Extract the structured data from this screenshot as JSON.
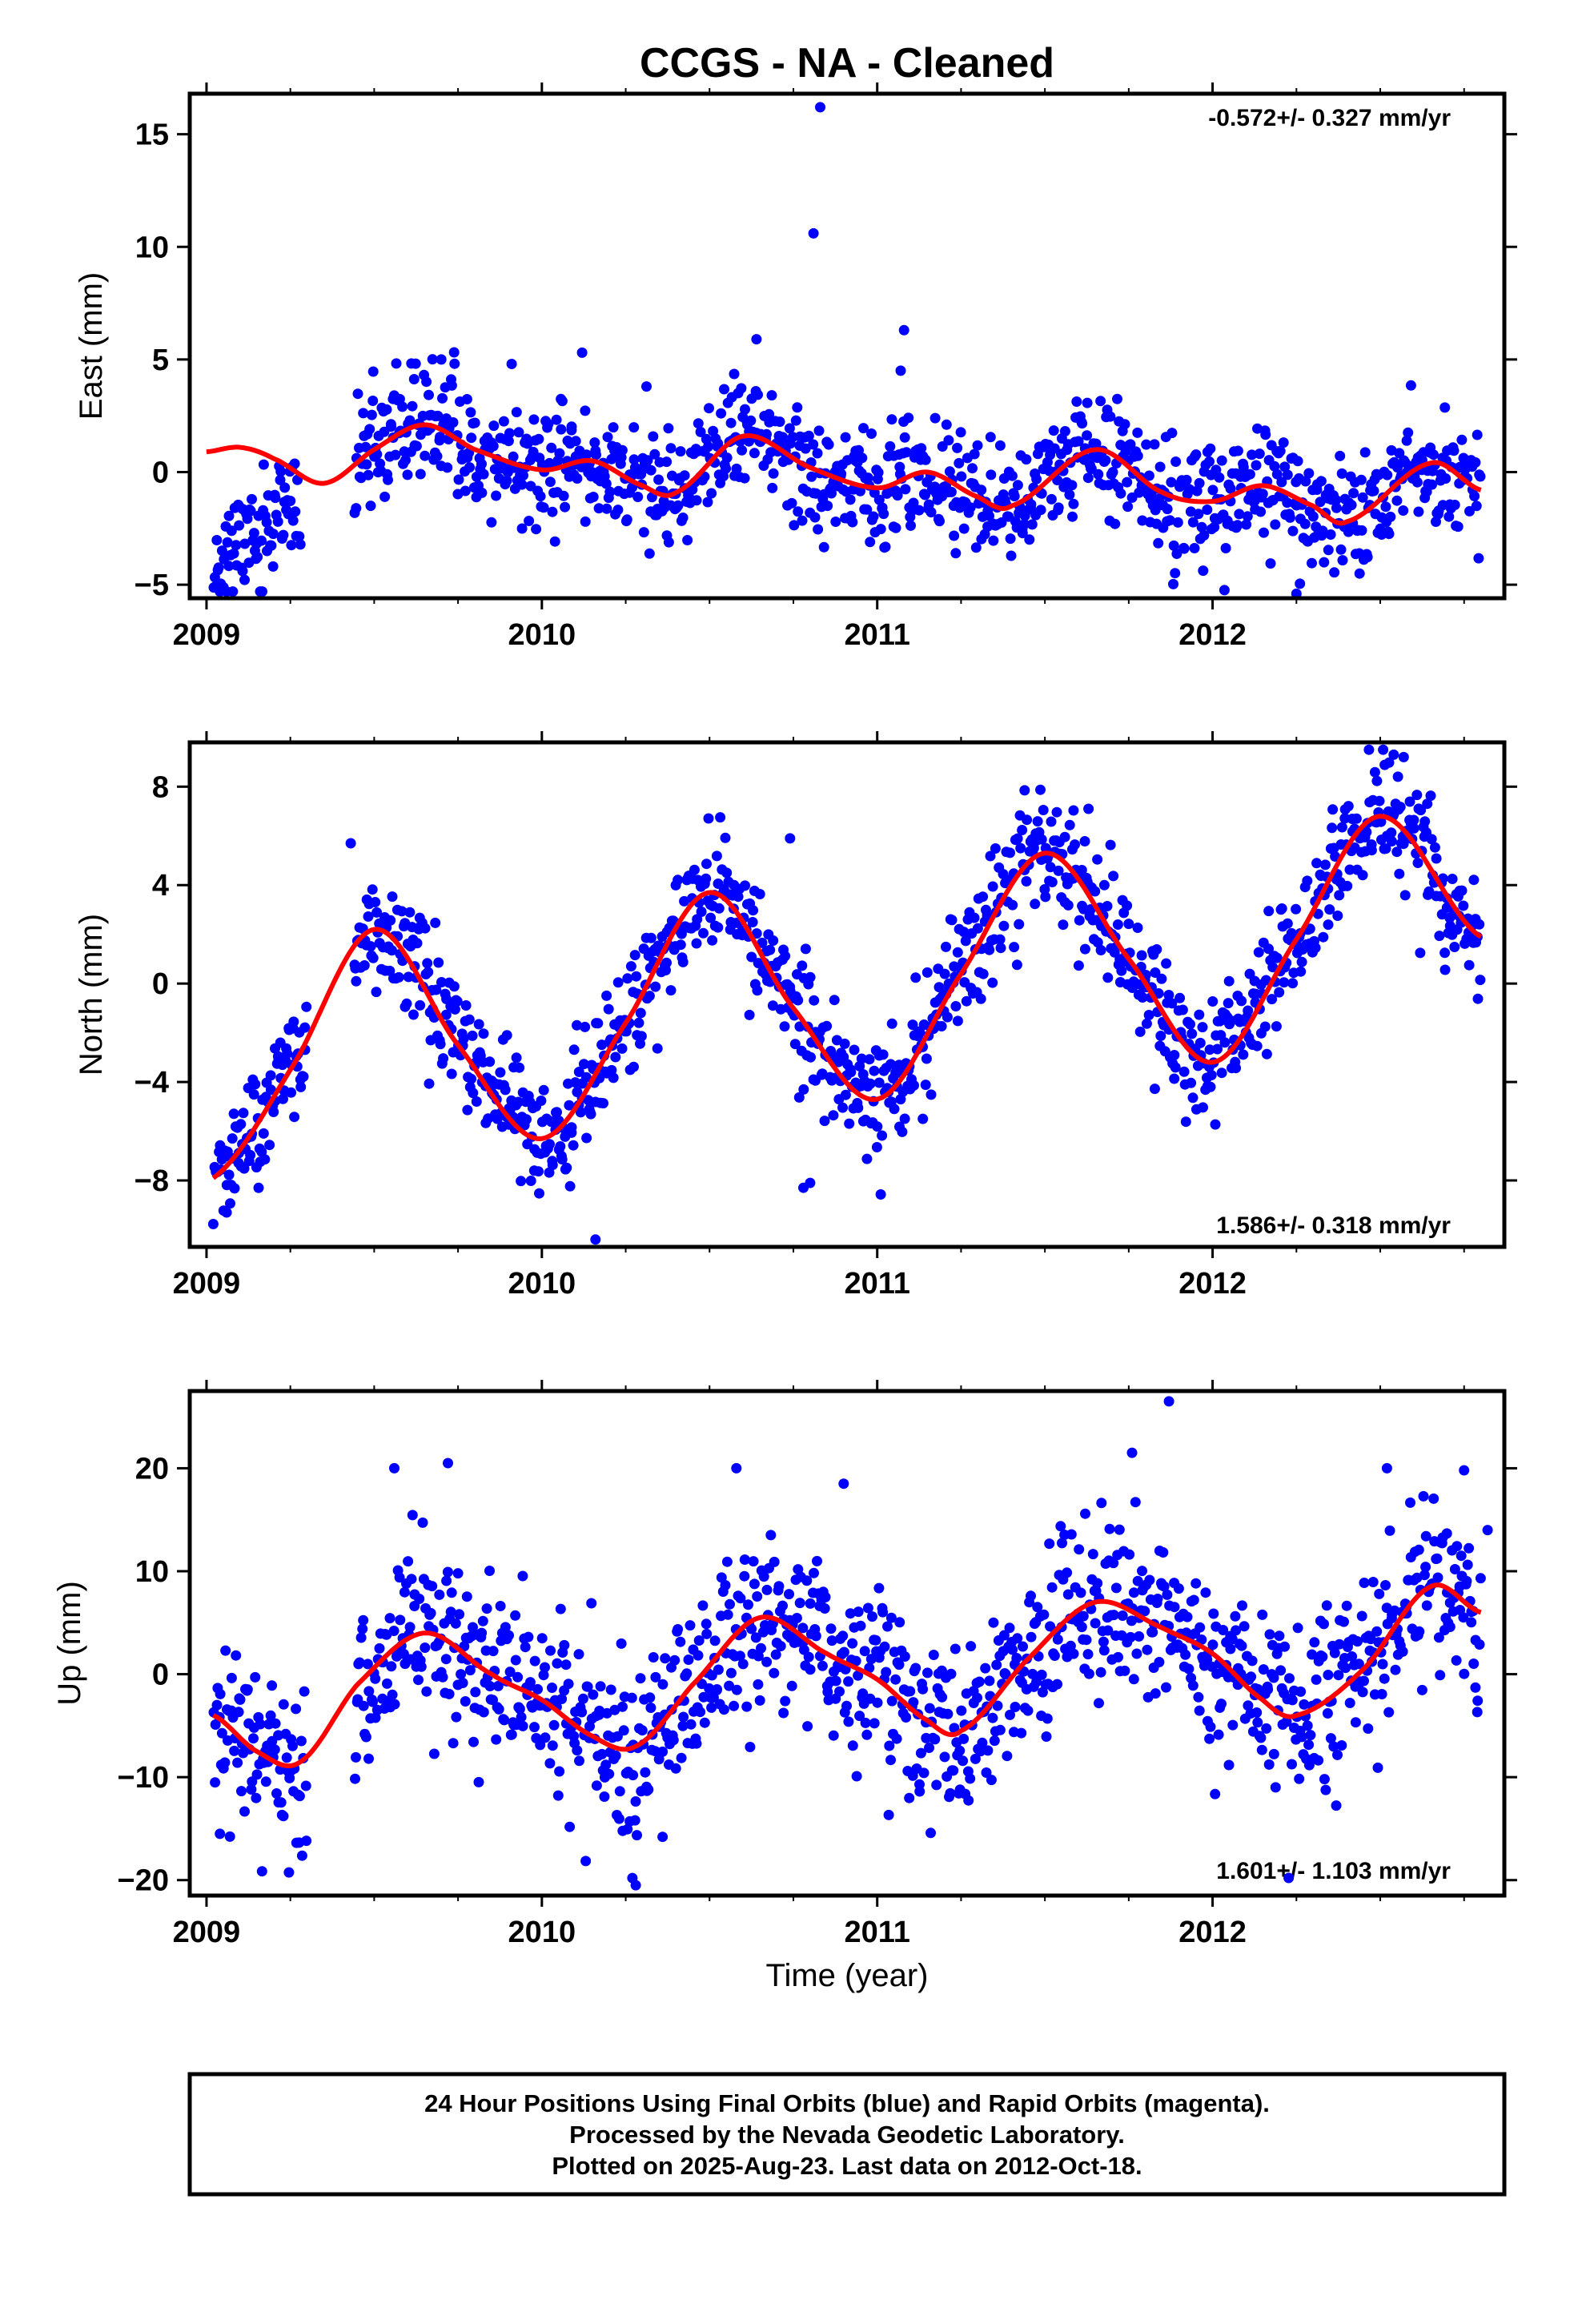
{
  "title": "CCGS  - NA - Cleaned",
  "x_axis_label": "Time (year)",
  "footer": {
    "lines": [
      "24 Hour Positions Using Final Orbits (blue) and Rapid Orbits (magenta).",
      "Processed by the Nevada Geodetic Laboratory.",
      "Plotted on 2025-Aug-23. Last data on 2012-Oct-18."
    ]
  },
  "colors": {
    "points": "#0000ff",
    "fit": "#ff0000",
    "frame": "#000000"
  },
  "chart_data": [
    {
      "type": "scatter",
      "component": "East",
      "ylabel": "East (mm)",
      "rate_label": "-0.572+/- 0.327 mm/yr",
      "rate_position": "top-right",
      "xlim": [
        2008.95,
        2012.87
      ],
      "ylim": [
        -5.6,
        16.8
      ],
      "xticks": [
        2009,
        2010,
        2011,
        2012
      ],
      "xtick_labels": [
        "2009",
        "2010",
        "2011",
        "2012"
      ],
      "yticks": [
        -5,
        0,
        5,
        10,
        15
      ],
      "ytick_labels": [
        "−5",
        "0",
        "5",
        "10",
        "15"
      ],
      "fit": {
        "x": [
          2009.0,
          2009.1,
          2009.2,
          2009.35,
          2009.5,
          2009.65,
          2009.8,
          2010.0,
          2010.15,
          2010.3,
          2010.4,
          2010.6,
          2010.8,
          2011.0,
          2011.15,
          2011.3,
          2011.4,
          2011.65,
          2011.85,
          2012.0,
          2012.15,
          2012.3,
          2012.4,
          2012.65,
          2012.8
        ],
        "y": [
          0.9,
          1.1,
          0.6,
          -0.5,
          1.0,
          2.1,
          1.0,
          0.1,
          0.5,
          -0.6,
          -0.9,
          1.6,
          0.2,
          -0.7,
          0.0,
          -1.1,
          -1.5,
          1.0,
          -0.9,
          -1.3,
          -0.6,
          -1.5,
          -2.2,
          0.4,
          -0.8
        ]
      },
      "scatter_model": {
        "segments": [
          {
            "from": 2009.02,
            "to": 2009.28,
            "y0": -4.0,
            "y1": -1.5
          },
          {
            "from": 2009.44,
            "to": 2012.8,
            "follow_fit": true
          }
        ],
        "spread": 1.3,
        "count": 1150,
        "seed": 11
      },
      "outliers": {
        "x": [
          2010.83,
          2010.81,
          2010.64,
          2011.08,
          2011.07,
          2009.91,
          2010.12,
          2009.7,
          2012.25
        ],
        "y": [
          16.2,
          10.6,
          5.9,
          6.3,
          4.5,
          4.8,
          5.3,
          5.0,
          -5.4
        ]
      }
    },
    {
      "type": "scatter",
      "component": "North",
      "ylabel": "North (mm)",
      "rate_label": "1.586+/- 0.318 mm/yr",
      "rate_position": "bottom-right",
      "xlim": [
        2008.95,
        2012.87
      ],
      "ylim": [
        -10.7,
        9.8
      ],
      "xticks": [
        2009,
        2010,
        2011,
        2012
      ],
      "xtick_labels": [
        "2009",
        "2010",
        "2011",
        "2012"
      ],
      "yticks": [
        -8,
        -4,
        0,
        4,
        8
      ],
      "ytick_labels": [
        "−8",
        "−4",
        "0",
        "4",
        "8"
      ],
      "fit": {
        "x": [
          2009.02,
          2009.25,
          2009.5,
          2009.75,
          2010.0,
          2010.25,
          2010.5,
          2010.75,
          2011.0,
          2011.25,
          2011.5,
          2011.75,
          2012.0,
          2012.25,
          2012.5,
          2012.8
        ],
        "y": [
          -7.9,
          -3.5,
          2.2,
          -2.5,
          -6.3,
          -1.6,
          3.7,
          -1.0,
          -4.7,
          0.4,
          5.3,
          1.0,
          -3.2,
          1.8,
          6.8,
          1.9
        ]
      },
      "scatter_model": {
        "segments": [
          {
            "from": 2009.02,
            "to": 2009.3,
            "follow_fit": true
          },
          {
            "from": 2009.44,
            "to": 2012.8,
            "follow_fit": true
          }
        ],
        "spread": 1.2,
        "count": 1150,
        "seed": 23
      },
      "outliers": {
        "x": [
          2010.16,
          2010.78,
          2010.8,
          2009.43,
          2010.74,
          2011.63,
          2012.54,
          2012.57,
          2009.06
        ],
        "y": [
          -10.4,
          -8.3,
          -8.1,
          5.7,
          5.9,
          7.1,
          9.3,
          9.2,
          -9.3
        ]
      }
    },
    {
      "type": "scatter",
      "component": "Up",
      "ylabel": "Up (mm)",
      "rate_label": "1.601+/- 1.103 mm/yr",
      "rate_position": "bottom-right",
      "xlim": [
        2008.95,
        2012.87
      ],
      "ylim": [
        -21.5,
        27.5
      ],
      "xticks": [
        2009,
        2010,
        2011,
        2012
      ],
      "xtick_labels": [
        "2009",
        "2010",
        "2011",
        "2012"
      ],
      "yticks": [
        -20,
        -10,
        0,
        10,
        20
      ],
      "ytick_labels": [
        "−20",
        "−10",
        "0",
        "10",
        "20"
      ],
      "fit": {
        "x": [
          2009.02,
          2009.15,
          2009.28,
          2009.45,
          2009.65,
          2009.85,
          2010.0,
          2010.15,
          2010.28,
          2010.45,
          2010.65,
          2010.85,
          2011.0,
          2011.15,
          2011.25,
          2011.45,
          2011.65,
          2011.85,
          2012.0,
          2012.15,
          2012.25,
          2012.45,
          2012.65,
          2012.8
        ],
        "y": [
          -4.0,
          -7.5,
          -8.5,
          -1.0,
          4.0,
          0.0,
          -2.5,
          -6.0,
          -7.0,
          -1.0,
          5.5,
          2.0,
          -0.5,
          -4.5,
          -5.5,
          1.5,
          7.0,
          4.5,
          2.0,
          -2.5,
          -4.0,
          0.5,
          8.5,
          6.0
        ]
      },
      "scatter_model": {
        "segments": [
          {
            "from": 2009.02,
            "to": 2009.3,
            "follow_fit": true
          },
          {
            "from": 2009.44,
            "to": 2012.8,
            "follow_fit": true
          }
        ],
        "spread": 4.2,
        "count": 1150,
        "seed": 37
      },
      "outliers": {
        "x": [
          2011.87,
          2011.76,
          2009.56,
          2009.72,
          2010.58,
          2012.52,
          2012.75,
          2010.9,
          2010.28,
          2010.27,
          2010.36,
          2009.04,
          2012.82
        ],
        "y": [
          26.5,
          21.5,
          20.0,
          20.5,
          20.0,
          20.0,
          19.8,
          18.5,
          -20.5,
          -19.8,
          -15.8,
          -15.5,
          14.0
        ]
      }
    }
  ]
}
